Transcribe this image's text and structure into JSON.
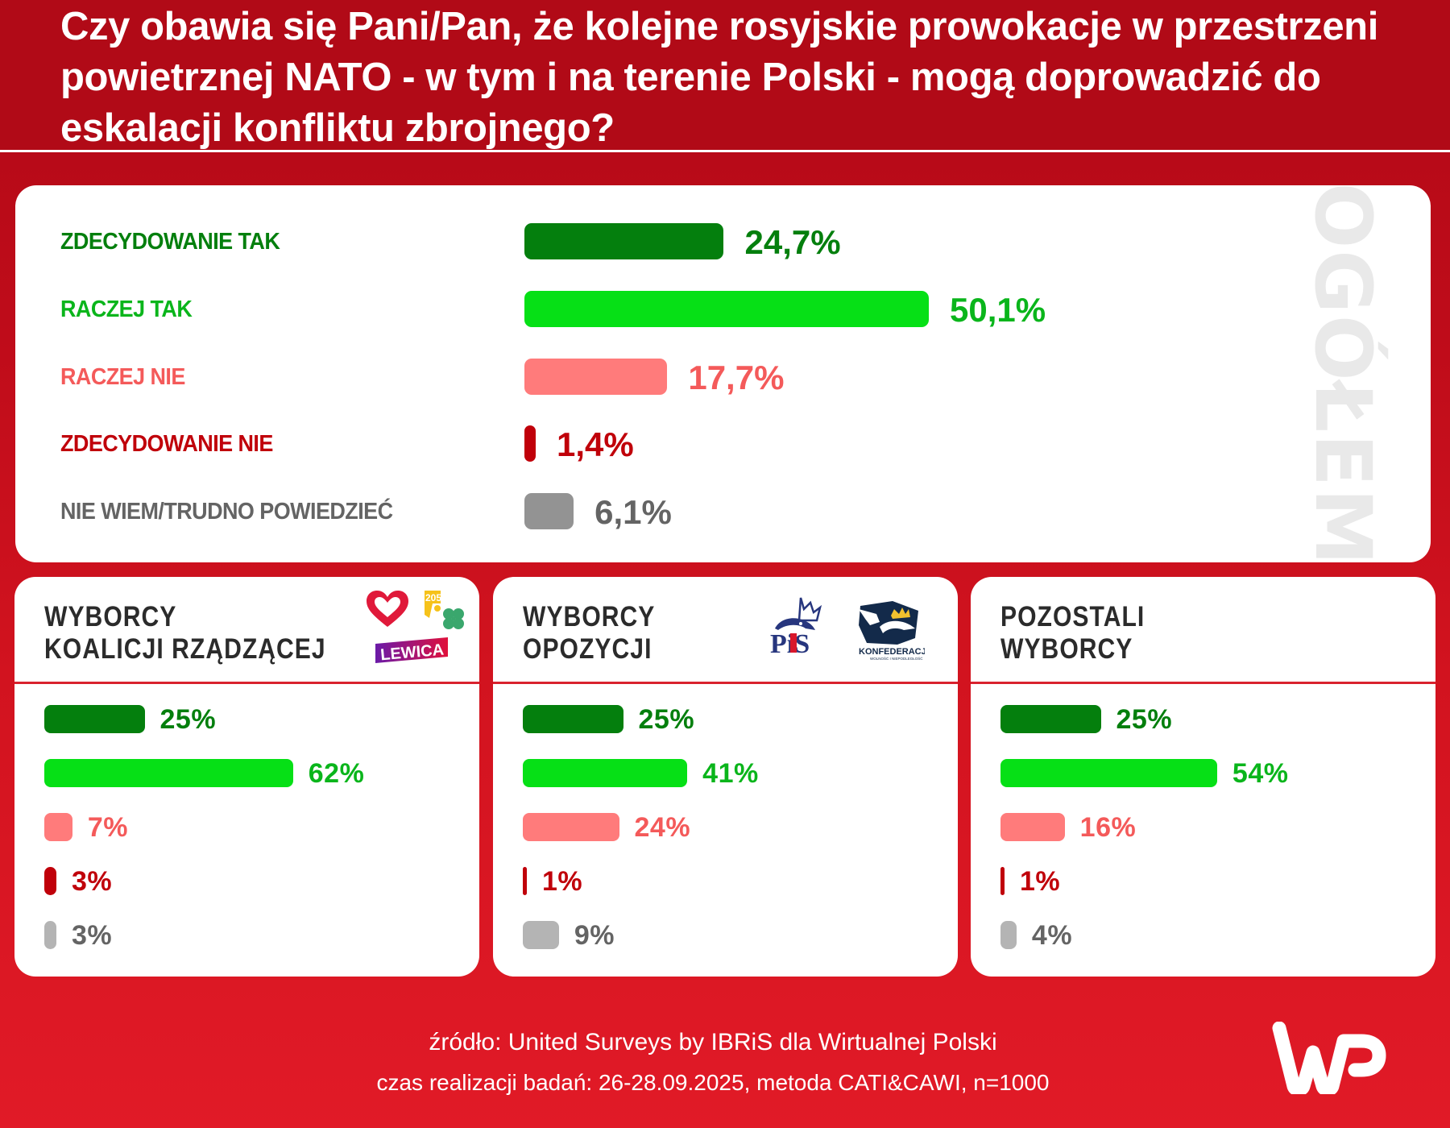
{
  "title": "Czy obawia się Pani/Pan, że kolejne rosyjskie prowokacje w przestrzeni powietrznej NATO - w tym i na terenie Polski - mogą doprowadzić do eskalacji konfliktu zbrojnego?",
  "title_lines": [
    "Czy obawia się Pani/Pan, że kolejne rosyjskie prowokacje w przestrzeni",
    "powietrznej NATO - w tym i na terenie Polski - mogą doprowadzić do",
    "eskalacji konfliktu zbrojnego?"
  ],
  "colors": {
    "definitely_yes": "#047f0d",
    "rather_yes_bar": "#06e016",
    "rather_yes_text": "#0ab51b",
    "rather_no_bar": "#ff7b7b",
    "rather_no_text": "#f45a5a",
    "definitely_no": "#c0000a",
    "dont_know_bar_overall": "#939393",
    "dont_know_bar_groups": "#b4b4b4",
    "dont_know_text": "#646464",
    "background_red": "#d2131f",
    "header_red": "#b10a17"
  },
  "chart_data": [
    {
      "type": "bar",
      "orientation": "horizontal",
      "title": "OGÓŁEM",
      "categories": [
        "ZDECYDOWANIE TAK",
        "RACZEJ TAK",
        "RACZEJ NIE",
        "ZDECYDOWANIE NIE",
        "NIE WIEM/TRUDNO POWIEDZIEĆ"
      ],
      "values": [
        24.7,
        50.1,
        17.7,
        1.4,
        6.1
      ],
      "value_labels": [
        "24,7%",
        "50,1%",
        "17,7%",
        "1,4%",
        "6,1%"
      ],
      "unit": "%",
      "xlim": [
        0,
        100
      ],
      "grid": false,
      "legend": "none"
    },
    {
      "type": "bar",
      "orientation": "horizontal",
      "title": "WYBORCY KOALICJI RZĄDZĄCEJ",
      "title_lines": [
        "WYBORCY",
        "KOALICJI RZĄDZĄCEJ"
      ],
      "categories": [
        "ZDECYDOWANIE TAK",
        "RACZEJ TAK",
        "RACZEJ NIE",
        "ZDECYDOWANIE NIE",
        "NIE WIEM/TRUDNO POWIEDZIEĆ"
      ],
      "values": [
        25,
        62,
        7,
        3,
        3
      ],
      "value_labels": [
        "25%",
        "62%",
        "7%",
        "3%",
        "3%"
      ],
      "unit": "%",
      "logos": [
        "heart-logo",
        "2050-logo",
        "clover-logo",
        "lewica-logo"
      ]
    },
    {
      "type": "bar",
      "orientation": "horizontal",
      "title": "WYBORCY OPOZYCJI",
      "title_lines": [
        "WYBORCY",
        "OPOZYCJI"
      ],
      "categories": [
        "ZDECYDOWANIE TAK",
        "RACZEJ TAK",
        "RACZEJ NIE",
        "ZDECYDOWANIE NIE",
        "NIE WIEM/TRUDNO POWIEDZIEĆ"
      ],
      "values": [
        25,
        41,
        24,
        1,
        9
      ],
      "value_labels": [
        "25%",
        "41%",
        "24%",
        "1%",
        "9%"
      ],
      "unit": "%",
      "logos": [
        "pis-logo",
        "konfederacja-logo"
      ]
    },
    {
      "type": "bar",
      "orientation": "horizontal",
      "title": "POZOSTALI WYBORCY",
      "title_lines": [
        "POZOSTALI",
        "WYBORCY"
      ],
      "categories": [
        "ZDECYDOWANIE TAK",
        "RACZEJ TAK",
        "RACZEJ NIE",
        "ZDECYDOWANIE NIE",
        "NIE WIEM/TRUDNO POWIEDZIEĆ"
      ],
      "values": [
        25,
        54,
        16,
        1,
        4
      ],
      "value_labels": [
        "25%",
        "54%",
        "16%",
        "1%",
        "4%"
      ],
      "unit": "%"
    }
  ],
  "logos": {
    "lewica_text": "LEWICA",
    "pis_text": "PiS",
    "konfederacja_text": "KONFEDERACJA",
    "konfederacja_subtext": "WOLNOŚĆ I NIEPODLEGŁOŚĆ",
    "logo_2050_text": "2050"
  },
  "footer": {
    "source": "źródło: United Surveys by IBRiS dla Wirtualnej Polski",
    "method": "czas realizacji badań: 26-28.09.2025, metoda CATI&CAWI, n=1000",
    "brand_logo": "wp-logo"
  }
}
